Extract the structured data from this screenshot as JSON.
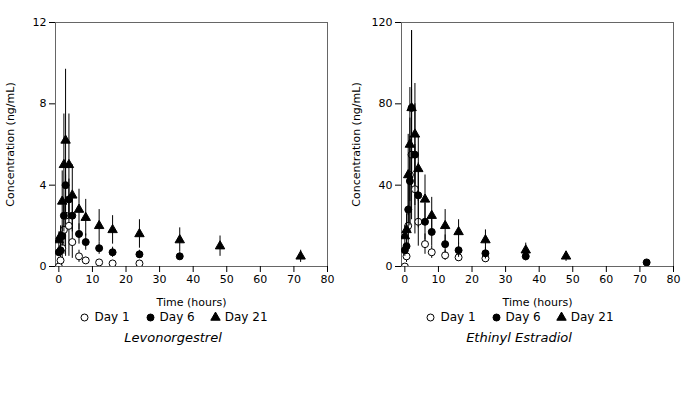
{
  "chart_data": [
    {
      "type": "scatter",
      "title": "Levonorgestrel",
      "xlabel": "Time (hours)",
      "ylabel": "Concentration (ng/mL)",
      "xlim": [
        -1,
        80
      ],
      "xticks": [
        0,
        10,
        20,
        30,
        40,
        50,
        60,
        70,
        80
      ],
      "ylim": [
        0,
        12
      ],
      "yticks": [
        0,
        4,
        8,
        12
      ],
      "grid": false,
      "legend": "bottom",
      "series": [
        {
          "name": "Day 1",
          "color": "black",
          "marker": "open_circle",
          "x": [
            0,
            0.5,
            1,
            1.5,
            2,
            3,
            4,
            6,
            8,
            12,
            16,
            24
          ],
          "values": [
            0.0,
            0.3,
            0.9,
            1.8,
            2.5,
            2.0,
            1.2,
            0.5,
            0.3,
            0.2,
            0.15,
            0.15
          ],
          "errors": [
            0.0,
            0.2,
            0.5,
            1.2,
            2.0,
            1.5,
            0.8,
            0.3,
            0.15,
            0.1,
            0.08,
            0.08
          ]
        },
        {
          "name": "Day 6",
          "color": "black",
          "marker": "circle",
          "x": [
            0,
            0.5,
            1,
            1.5,
            2,
            3,
            4,
            6,
            8,
            12,
            16,
            24,
            36
          ],
          "values": [
            0.7,
            0.8,
            1.5,
            2.5,
            4.0,
            3.3,
            2.5,
            1.6,
            1.2,
            0.9,
            0.7,
            0.6,
            0.5
          ],
          "errors": [
            0.2,
            0.3,
            0.5,
            0.8,
            1.0,
            1.0,
            0.8,
            0.5,
            0.4,
            0.3,
            0.25,
            0.2,
            0.18
          ]
        },
        {
          "name": "Day 21",
          "color": "black",
          "marker": "triangle",
          "x": [
            0,
            0.5,
            1,
            1.5,
            2,
            3,
            4,
            6,
            8,
            12,
            16,
            24,
            36,
            48,
            72
          ],
          "values": [
            1.3,
            1.5,
            3.2,
            5.0,
            6.2,
            5.0,
            3.5,
            2.8,
            2.4,
            2.0,
            1.8,
            1.6,
            1.3,
            1.0,
            0.5
          ],
          "errors": [
            0.4,
            0.5,
            1.5,
            2.5,
            3.5,
            2.5,
            1.5,
            1.0,
            0.9,
            0.8,
            0.7,
            0.7,
            0.6,
            0.5,
            0.3
          ]
        }
      ]
    },
    {
      "type": "scatter",
      "title": "Ethinyl Estradiol",
      "xlabel": "Time (hours)",
      "ylabel": "Concentration (ng/mL)",
      "xlim": [
        -1,
        80
      ],
      "xticks": [
        0,
        10,
        20,
        30,
        40,
        50,
        60,
        70,
        80
      ],
      "ylim": [
        0,
        120
      ],
      "yticks": [
        0,
        40,
        80,
        120
      ],
      "grid": false,
      "legend": "bottom",
      "series": [
        {
          "name": "Day 1",
          "color": "black",
          "marker": "open_circle",
          "x": [
            0,
            0.5,
            1,
            1.5,
            2,
            3,
            4,
            6,
            8,
            12,
            16,
            24
          ],
          "values": [
            0.0,
            5.0,
            20.0,
            45.0,
            55.0,
            38.0,
            22.0,
            11.0,
            7.0,
            5.5,
            4.5,
            4.0
          ],
          "errors": [
            0.0,
            3.0,
            10.0,
            28.0,
            32.0,
            22.0,
            12.0,
            5.0,
            3.0,
            2.5,
            2.0,
            2.0
          ]
        },
        {
          "name": "Day 6",
          "color": "black",
          "marker": "circle",
          "x": [
            0,
            0.5,
            1,
            1.5,
            2,
            3,
            4,
            6,
            8,
            12,
            16,
            24,
            36,
            72
          ],
          "values": [
            8.0,
            10.0,
            28.0,
            42.0,
            78.0,
            55.0,
            35.0,
            22.0,
            17.0,
            11.0,
            8.0,
            6.5,
            5.0,
            2.0
          ],
          "errors": [
            3.0,
            4.0,
            15.0,
            22.0,
            38.0,
            25.0,
            16.0,
            9.0,
            7.0,
            4.5,
            3.5,
            2.8,
            2.2,
            0.5
          ]
        },
        {
          "name": "Day 21",
          "color": "black",
          "marker": "triangle",
          "x": [
            0,
            0.5,
            1,
            1.5,
            2,
            3,
            4,
            6,
            8,
            12,
            16,
            24,
            36,
            48
          ],
          "values": [
            15.0,
            18.0,
            45.0,
            60.0,
            78.0,
            65.0,
            48.0,
            33.0,
            25.0,
            20.0,
            17.0,
            13.0,
            8.0,
            5.0
          ],
          "errors": [
            5.0,
            8.0,
            20.0,
            28.0,
            38.0,
            25.0,
            16.0,
            12.0,
            9.0,
            8.0,
            6.0,
            5.0,
            3.5,
            2.5
          ]
        }
      ]
    }
  ]
}
